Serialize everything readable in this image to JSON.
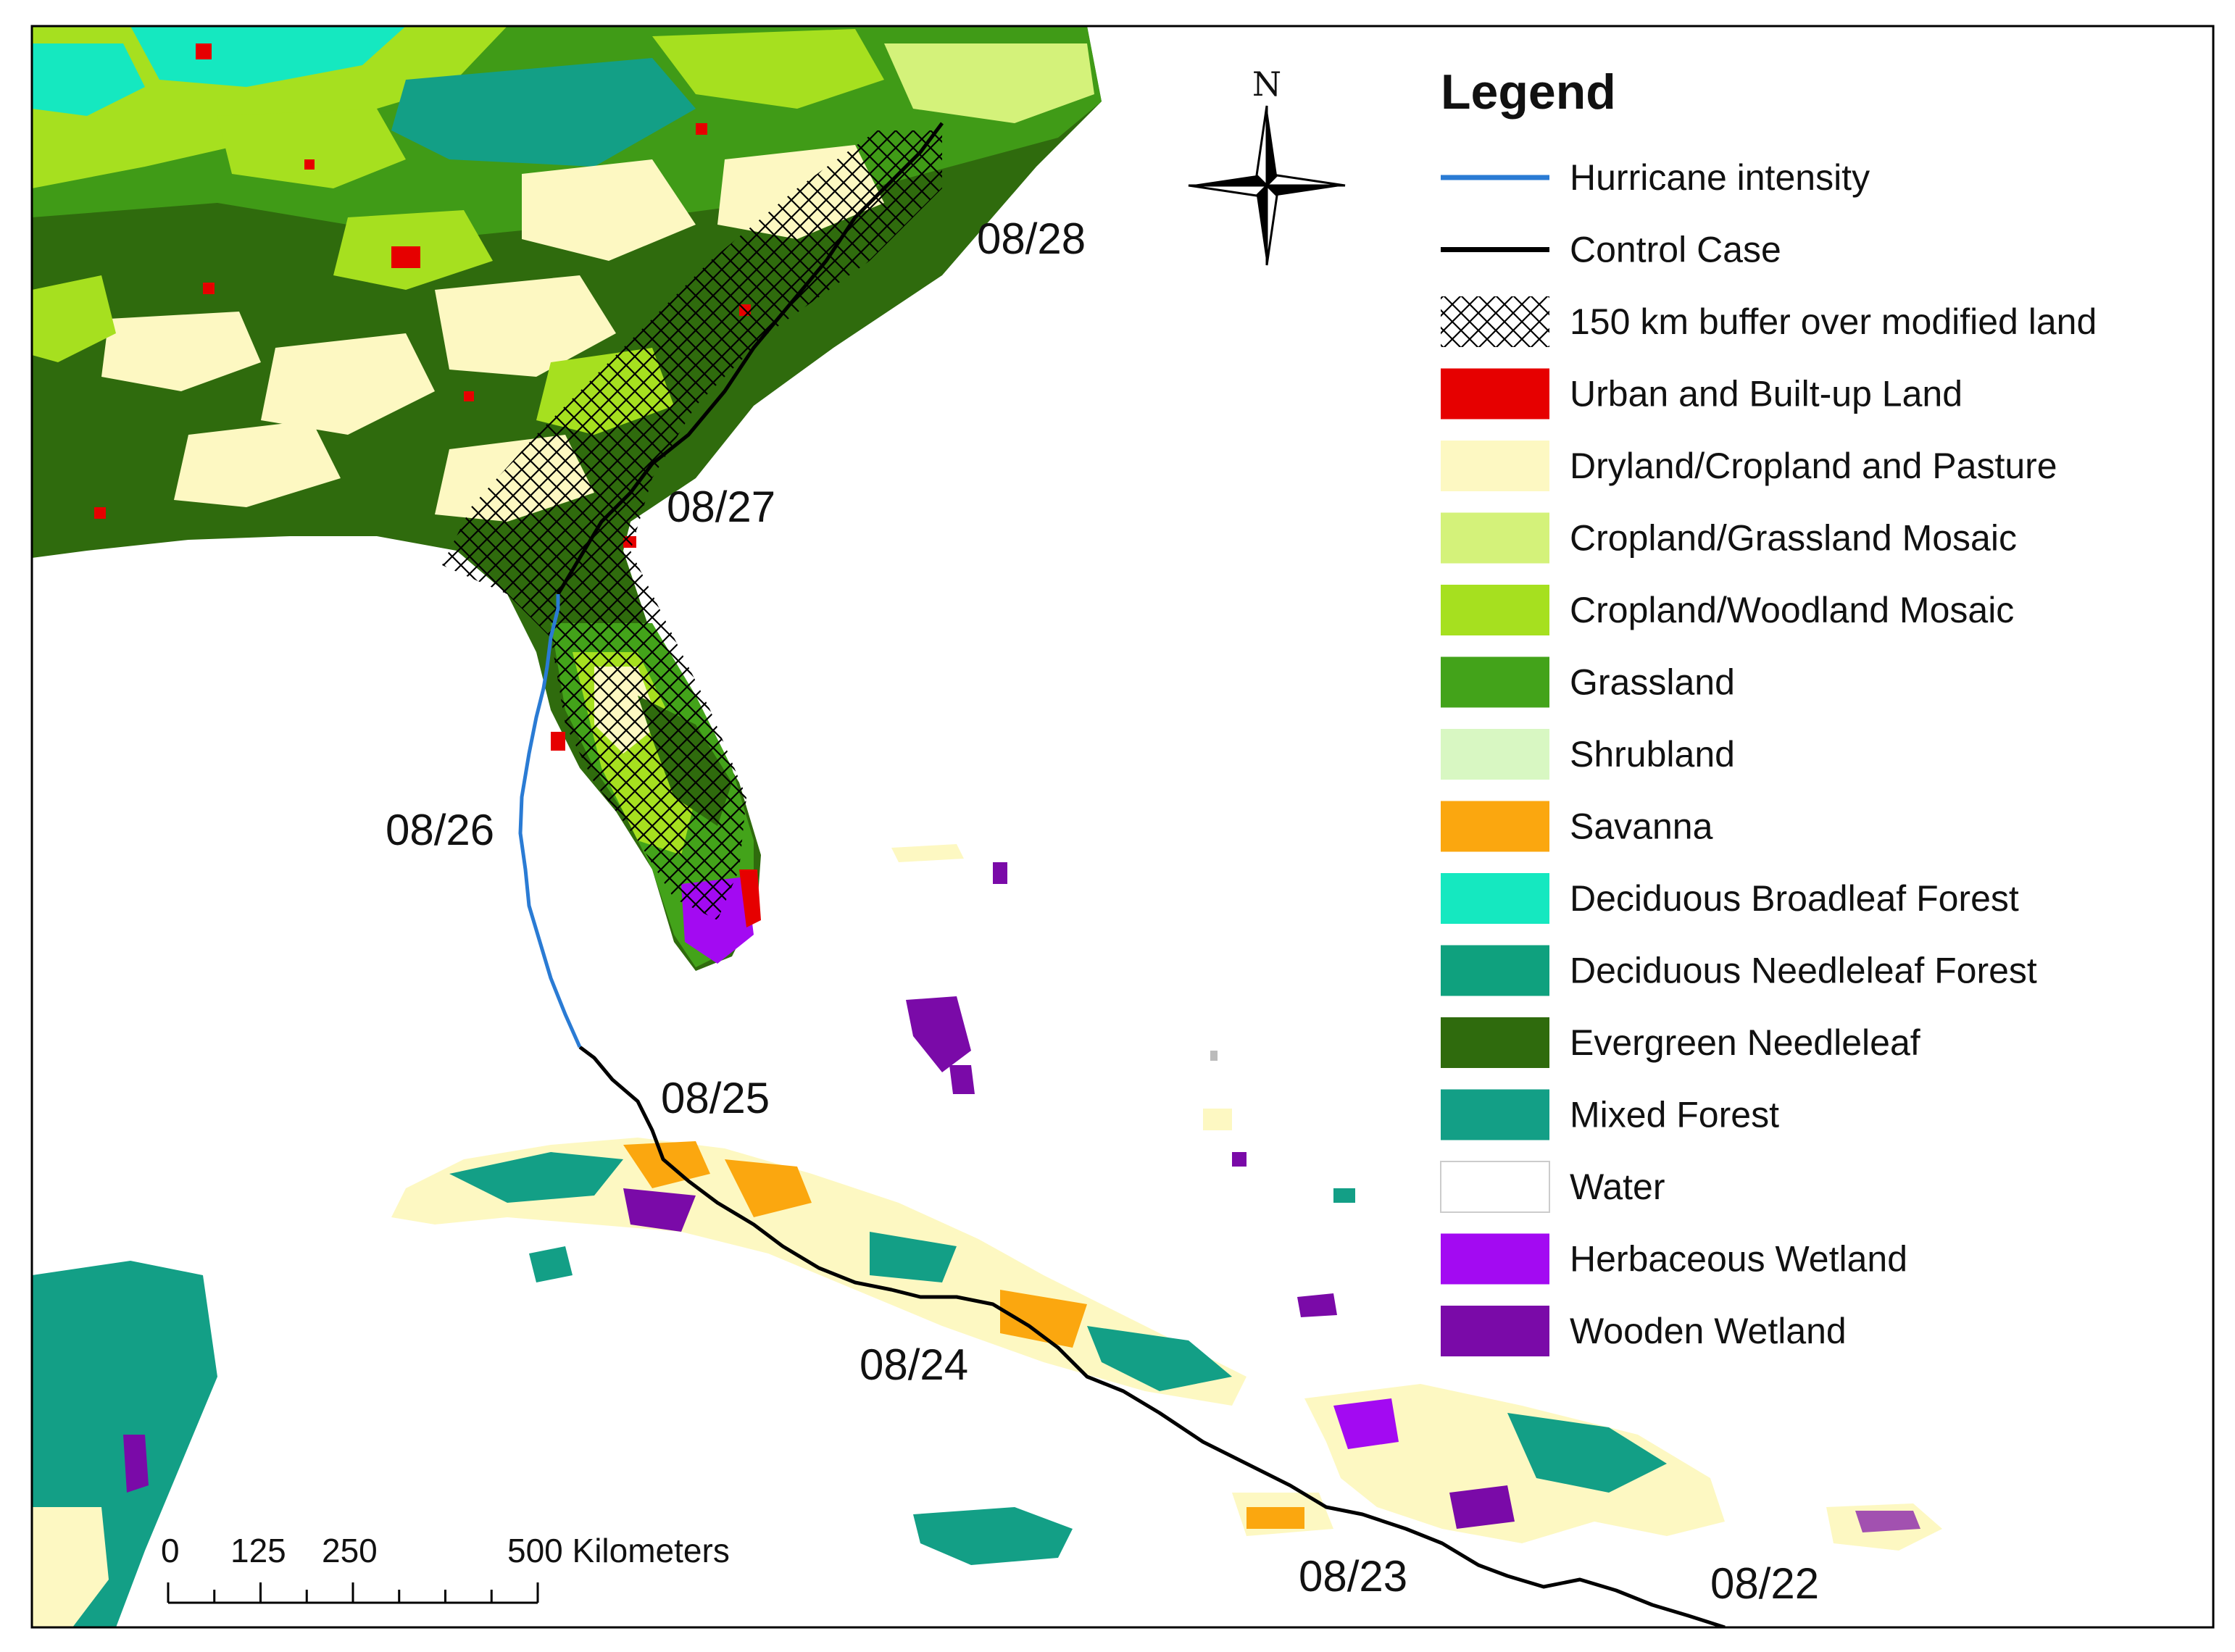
{
  "colors": {
    "urban": "#e60000",
    "dryland": "#fdf8c2",
    "crop_grass": "#d4f27a",
    "crop_wood": "#a6e01f",
    "grassland": "#43a31a",
    "shrubland": "#d8f7c2",
    "savanna": "#fba70f",
    "decid_broad": "#15e8c0",
    "decid_needle": "#0fa17e",
    "evergreen": "#2f6b0d",
    "mixed": "#139f86",
    "water": "#ffffff",
    "herb_wetland": "#a30af2",
    "wooden_wetland": "#7a0aa8",
    "hurricane": "#2a7bd4",
    "control": "#000000"
  },
  "legend": {
    "title": "Legend",
    "items": [
      {
        "key": "hurricane",
        "label": "Hurricane intensity",
        "symbol": "line",
        "color": "#2a7bd4"
      },
      {
        "key": "control",
        "label": "Control Case",
        "symbol": "line",
        "color": "#000000"
      },
      {
        "key": "buffer",
        "label": "150 km buffer over modified land",
        "symbol": "hatch",
        "color": "#000000"
      },
      {
        "key": "urban",
        "label": "Urban and Built-up Land",
        "symbol": "fill",
        "color": "#e60000"
      },
      {
        "key": "dryland",
        "label": "Dryland/Cropland and Pasture",
        "symbol": "fill",
        "color": "#fdf8c2"
      },
      {
        "key": "crop_grass",
        "label": "Cropland/Grassland Mosaic",
        "symbol": "fill",
        "color": "#d4f27a"
      },
      {
        "key": "crop_wood",
        "label": "Cropland/Woodland Mosaic",
        "symbol": "fill",
        "color": "#a6e01f"
      },
      {
        "key": "grassland",
        "label": "Grassland",
        "symbol": "fill",
        "color": "#43a31a"
      },
      {
        "key": "shrubland",
        "label": "Shrubland",
        "symbol": "fill",
        "color": "#d8f7c2"
      },
      {
        "key": "savanna",
        "label": "Savanna",
        "symbol": "fill",
        "color": "#fba70f"
      },
      {
        "key": "decid_broad",
        "label": "Deciduous Broadleaf Forest",
        "symbol": "fill",
        "color": "#15e8c0"
      },
      {
        "key": "decid_needle",
        "label": "Deciduous Needleleaf Forest",
        "symbol": "fill",
        "color": "#0fa17e"
      },
      {
        "key": "evergreen",
        "label": "Evergreen Needleleaf",
        "symbol": "fill",
        "color": "#2f6b0d"
      },
      {
        "key": "mixed",
        "label": "Mixed Forest",
        "symbol": "fill",
        "color": "#139f86"
      },
      {
        "key": "water",
        "label": "Water",
        "symbol": "fill",
        "color": "#ffffff"
      },
      {
        "key": "herb_wetland",
        "label": "Herbaceous Wetland",
        "symbol": "fill",
        "color": "#a30af2"
      },
      {
        "key": "wooden_wetland",
        "label": "Wooden Wetland",
        "symbol": "fill",
        "color": "#7a0aa8"
      }
    ]
  },
  "dates": {
    "d0828": "08/28",
    "d0827": "08/27",
    "d0826": "08/26",
    "d0825": "08/25",
    "d0824": "08/24",
    "d0823": "08/23",
    "d0822": "08/22"
  },
  "scale_bar": {
    "ticks": [
      "0",
      "125",
      "250",
      "500 Kilometers"
    ]
  },
  "north_arrow": {
    "label": "N"
  }
}
